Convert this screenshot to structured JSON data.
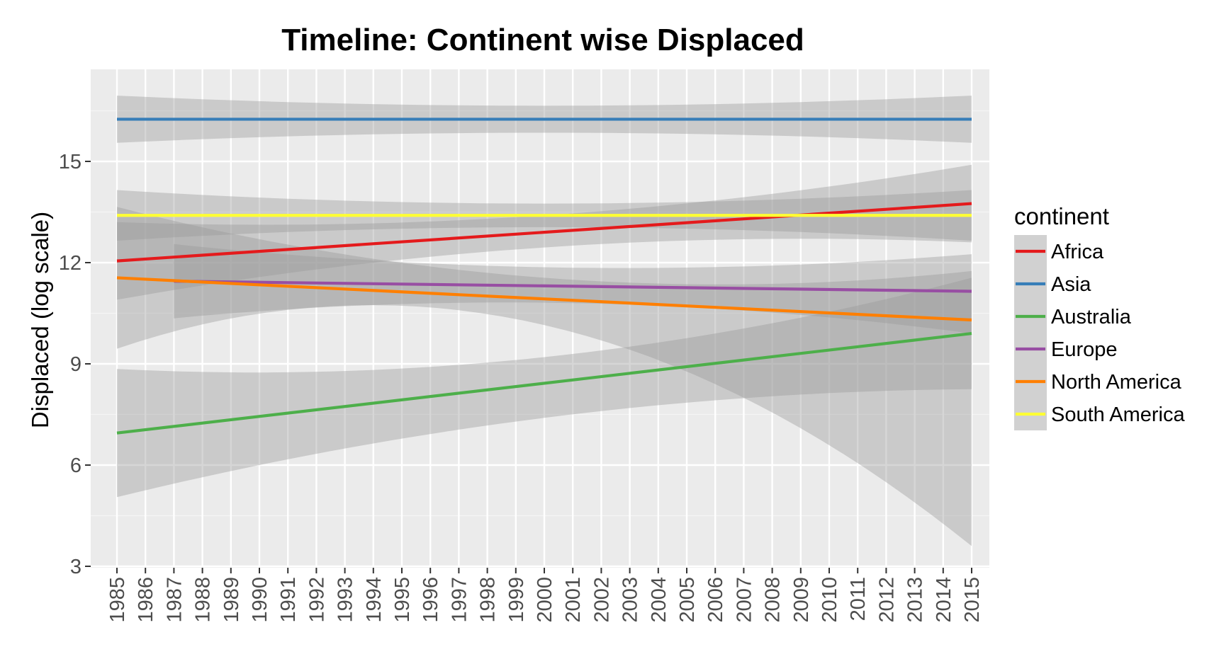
{
  "chart_data": {
    "type": "line",
    "title": "Timeline: Continent wise Displaced",
    "xlabel": "",
    "ylabel": "Displaced (log scale)",
    "x": [
      1985,
      1986,
      1987,
      1988,
      1989,
      1990,
      1991,
      1992,
      1993,
      1994,
      1995,
      1996,
      1997,
      1998,
      1999,
      2000,
      2001,
      2002,
      2003,
      2004,
      2005,
      2006,
      2007,
      2008,
      2009,
      2010,
      2011,
      2012,
      2013,
      2014,
      2015
    ],
    "xlim": [
      1985,
      2015
    ],
    "ylim": [
      3,
      16.9
    ],
    "yticks": [
      3,
      6,
      9,
      12,
      15
    ],
    "grid": true,
    "legend_title": "continent",
    "legend_position": "right",
    "series": [
      {
        "name": "Africa",
        "color": "#E41A1C",
        "x_start": 1985,
        "x_end": 2015,
        "y_start": 12.05,
        "y_end": 13.75,
        "band_start": [
          10.9,
          13.2
        ],
        "band_mid": [
          12.45,
          13.4
        ],
        "band_end": [
          12.6,
          14.9
        ]
      },
      {
        "name": "Asia",
        "color": "#377EB8",
        "x_start": 1985,
        "x_end": 2015,
        "y_start": 16.25,
        "y_end": 16.25,
        "band_start": [
          15.55,
          16.95
        ],
        "band_mid": [
          15.85,
          16.65
        ],
        "band_end": [
          15.55,
          16.95
        ]
      },
      {
        "name": "Australia",
        "color": "#4DAF4A",
        "x_start": 1985,
        "x_end": 2015,
        "y_start": 6.95,
        "y_end": 9.9,
        "band_start": [
          5.05,
          8.85
        ],
        "band_mid": [
          7.4,
          9.2
        ],
        "band_end": [
          8.25,
          11.55
        ]
      },
      {
        "name": "Europe",
        "color": "#984EA3",
        "x_start": 1987,
        "x_end": 2015,
        "y_start": 11.45,
        "y_end": 11.15,
        "band_start": [
          10.35,
          12.55
        ],
        "band_mid": [
          10.8,
          11.85
        ],
        "band_end": [
          9.9,
          12.25
        ]
      },
      {
        "name": "North America",
        "color": "#FF7F00",
        "x_start": 1985,
        "x_end": 2015,
        "y_start": 11.55,
        "y_end": 10.3,
        "band_start": [
          9.45,
          13.65
        ],
        "band_mid": [
          10.15,
          11.55
        ],
        "band_end": [
          3.6,
          11.75
        ]
      },
      {
        "name": "South America",
        "color": "#FFFF33",
        "x_start": 1985,
        "x_end": 2015,
        "y_start": 13.4,
        "y_end": 13.4,
        "band_start": [
          12.65,
          14.15
        ],
        "band_mid": [
          13.05,
          13.75
        ],
        "band_end": [
          12.65,
          14.15
        ]
      }
    ]
  }
}
